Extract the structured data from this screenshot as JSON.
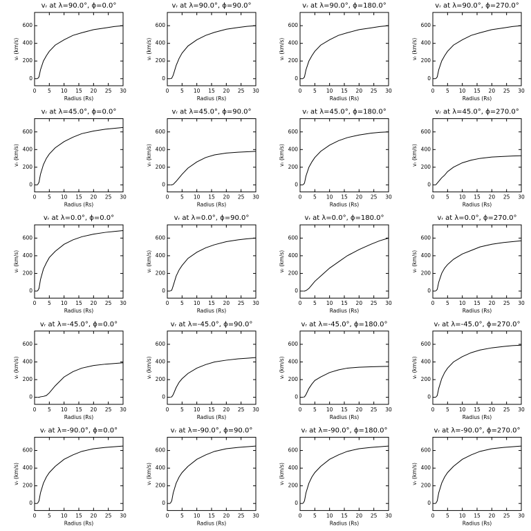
{
  "chart_data": [
    {
      "type": "line",
      "title": "vᵣ at λ=90.0°, ϕ=0.0°",
      "xlabel": "Radius (Rs)",
      "ylabel": "vᵣ (km/s)",
      "x": [
        1,
        1.5,
        2,
        3,
        4,
        5,
        7,
        10,
        13,
        16,
        20,
        24,
        27,
        30
      ],
      "values": [
        0,
        20,
        100,
        200,
        260,
        310,
        380,
        440,
        490,
        520,
        555,
        575,
        590,
        600
      ],
      "xlim": [
        0,
        30
      ],
      "ylim": [
        -80,
        750
      ],
      "xticks": [
        0,
        5,
        10,
        15,
        20,
        25,
        30
      ],
      "yticks": [
        0,
        200,
        400,
        600
      ]
    },
    {
      "type": "line",
      "title": "vᵣ at λ=90.0°, ϕ=90.0°",
      "xlabel": "Radius (Rs)",
      "ylabel": "vᵣ (km/s)",
      "x": [
        1,
        1.5,
        2,
        3,
        4,
        5,
        7,
        10,
        13,
        16,
        20,
        24,
        27,
        30
      ],
      "values": [
        0,
        5,
        40,
        150,
        230,
        290,
        370,
        440,
        490,
        525,
        560,
        580,
        592,
        600
      ],
      "xlim": [
        0,
        30
      ],
      "ylim": [
        -80,
        750
      ],
      "xticks": [
        0,
        5,
        10,
        15,
        20,
        25,
        30
      ],
      "yticks": [
        0,
        200,
        400,
        600
      ]
    },
    {
      "type": "line",
      "title": "vᵣ at λ=90.0°, ϕ=180.0°",
      "xlabel": "Radius (Rs)",
      "ylabel": "vᵣ (km/s)",
      "x": [
        1,
        1.5,
        2,
        3,
        4,
        5,
        7,
        10,
        13,
        16,
        20,
        24,
        27,
        30
      ],
      "values": [
        0,
        20,
        100,
        200,
        260,
        310,
        380,
        440,
        490,
        520,
        555,
        575,
        590,
        600
      ],
      "xlim": [
        0,
        30
      ],
      "ylim": [
        -80,
        750
      ],
      "xticks": [
        0,
        5,
        10,
        15,
        20,
        25,
        30
      ],
      "yticks": [
        0,
        200,
        400,
        600
      ]
    },
    {
      "type": "line",
      "title": "vᵣ at λ=90.0°, ϕ=270.0°",
      "xlabel": "Radius (Rs)",
      "ylabel": "vᵣ (km/s)",
      "x": [
        1,
        1.5,
        2,
        3,
        4,
        5,
        7,
        10,
        13,
        16,
        20,
        24,
        27,
        30
      ],
      "values": [
        0,
        20,
        100,
        200,
        260,
        310,
        380,
        440,
        490,
        520,
        555,
        575,
        590,
        600
      ],
      "xlim": [
        0,
        30
      ],
      "ylim": [
        -80,
        750
      ],
      "xticks": [
        0,
        5,
        10,
        15,
        20,
        25,
        30
      ],
      "yticks": [
        0,
        200,
        400,
        600
      ]
    },
    {
      "type": "line",
      "title": "vᵣ at λ=45.0°, ϕ=0.0°",
      "xlabel": "Radius (Rs)",
      "ylabel": "vᵣ (km/s)",
      "x": [
        1,
        1.5,
        2,
        3,
        4,
        5,
        7,
        10,
        13,
        16,
        20,
        24,
        27,
        30
      ],
      "values": [
        0,
        30,
        120,
        230,
        300,
        350,
        420,
        490,
        540,
        580,
        610,
        630,
        640,
        650
      ],
      "xlim": [
        0,
        30
      ],
      "ylim": [
        -80,
        750
      ],
      "xticks": [
        0,
        5,
        10,
        15,
        20,
        25,
        30
      ],
      "yticks": [
        0,
        200,
        400,
        600
      ]
    },
    {
      "type": "line",
      "title": "vᵣ at λ=45.0°, ϕ=90.0°",
      "xlabel": "Radius (Rs)",
      "ylabel": "vᵣ (km/s)",
      "x": [
        1,
        1.5,
        2,
        3,
        4,
        5,
        7,
        10,
        13,
        16,
        20,
        24,
        27,
        30
      ],
      "values": [
        0,
        0,
        5,
        40,
        80,
        120,
        190,
        260,
        310,
        340,
        360,
        370,
        375,
        380
      ],
      "xlim": [
        0,
        30
      ],
      "ylim": [
        -80,
        750
      ],
      "xticks": [
        0,
        5,
        10,
        15,
        20,
        25,
        30
      ],
      "yticks": [
        0,
        200,
        400,
        600
      ]
    },
    {
      "type": "line",
      "title": "vᵣ at λ=45.0°, ϕ=180.0°",
      "xlabel": "Radius (Rs)",
      "ylabel": "vᵣ (km/s)",
      "x": [
        1,
        1.5,
        2,
        3,
        4,
        5,
        7,
        10,
        13,
        16,
        20,
        24,
        27,
        30
      ],
      "values": [
        0,
        20,
        100,
        200,
        260,
        310,
        380,
        450,
        500,
        535,
        565,
        585,
        595,
        600
      ],
      "xlim": [
        0,
        30
      ],
      "ylim": [
        -80,
        750
      ],
      "xticks": [
        0,
        5,
        10,
        15,
        20,
        25,
        30
      ],
      "yticks": [
        0,
        200,
        400,
        600
      ]
    },
    {
      "type": "line",
      "title": "vᵣ at λ=45.0°, ϕ=270.0°",
      "xlabel": "Radius (Rs)",
      "ylabel": "vᵣ (km/s)",
      "x": [
        1,
        1.5,
        2,
        3,
        4,
        5,
        7,
        10,
        13,
        16,
        20,
        24,
        27,
        30
      ],
      "values": [
        0,
        20,
        40,
        80,
        110,
        150,
        200,
        250,
        280,
        300,
        315,
        322,
        327,
        330
      ],
      "xlim": [
        0,
        30
      ],
      "ylim": [
        -80,
        750
      ],
      "xticks": [
        0,
        5,
        10,
        15,
        20,
        25,
        30
      ],
      "yticks": [
        0,
        200,
        400,
        600
      ]
    },
    {
      "type": "line",
      "title": "vᵣ at λ=0.0°, ϕ=0.0°",
      "xlabel": "Radius (Rs)",
      "ylabel": "vᵣ (km/s)",
      "x": [
        1,
        1.5,
        2,
        3,
        4,
        5,
        7,
        10,
        13,
        16,
        20,
        24,
        27,
        30
      ],
      "values": [
        0,
        30,
        130,
        250,
        320,
        380,
        450,
        530,
        580,
        615,
        645,
        665,
        675,
        685
      ],
      "xlim": [
        0,
        30
      ],
      "ylim": [
        -80,
        750
      ],
      "xticks": [
        0,
        5,
        10,
        15,
        20,
        25,
        30
      ],
      "yticks": [
        0,
        200,
        400,
        600
      ]
    },
    {
      "type": "line",
      "title": "vᵣ at λ=0.0°, ϕ=90.0°",
      "xlabel": "Radius (Rs)",
      "ylabel": "vᵣ (km/s)",
      "x": [
        1,
        1.5,
        2,
        3,
        4,
        5,
        7,
        10,
        13,
        16,
        20,
        24,
        27,
        30
      ],
      "values": [
        0,
        10,
        60,
        170,
        240,
        290,
        370,
        440,
        490,
        525,
        560,
        580,
        592,
        600
      ],
      "xlim": [
        0,
        30
      ],
      "ylim": [
        -80,
        750
      ],
      "xticks": [
        0,
        5,
        10,
        15,
        20,
        25,
        30
      ],
      "yticks": [
        0,
        200,
        400,
        600
      ]
    },
    {
      "type": "line",
      "title": "vᵣ at λ=0.0°, ϕ=180.0°",
      "xlabel": "Radius (Rs)",
      "ylabel": "vᵣ (km/s)",
      "x": [
        1,
        1.5,
        2,
        3,
        4,
        5,
        7,
        10,
        13,
        16,
        20,
        24,
        27,
        30
      ],
      "values": [
        0,
        0,
        5,
        30,
        70,
        110,
        170,
        260,
        330,
        400,
        470,
        530,
        570,
        600
      ],
      "xlim": [
        0,
        30
      ],
      "ylim": [
        -80,
        750
      ],
      "xticks": [
        0,
        5,
        10,
        15,
        20,
        25,
        30
      ],
      "yticks": [
        0,
        200,
        400,
        600
      ]
    },
    {
      "type": "line",
      "title": "vᵣ at λ=0.0°, ϕ=270.0°",
      "xlabel": "Radius (Rs)",
      "ylabel": "vᵣ (km/s)",
      "x": [
        1,
        1.5,
        2,
        3,
        4,
        5,
        7,
        10,
        13,
        16,
        20,
        24,
        27,
        30
      ],
      "values": [
        0,
        20,
        100,
        200,
        260,
        300,
        360,
        420,
        460,
        500,
        530,
        550,
        560,
        570
      ],
      "xlim": [
        0,
        30
      ],
      "ylim": [
        -80,
        750
      ],
      "xticks": [
        0,
        5,
        10,
        15,
        20,
        25,
        30
      ],
      "yticks": [
        0,
        200,
        400,
        600
      ]
    },
    {
      "type": "line",
      "title": "vᵣ at λ=-45.0°, ϕ=0.0°",
      "xlabel": "Radius (Rs)",
      "ylabel": "vᵣ (km/s)",
      "x": [
        1,
        1.5,
        2,
        3,
        4,
        5,
        7,
        10,
        13,
        16,
        20,
        24,
        27,
        30
      ],
      "values": [
        0,
        0,
        5,
        10,
        20,
        50,
        130,
        230,
        290,
        330,
        360,
        375,
        382,
        390
      ],
      "xlim": [
        0,
        30
      ],
      "ylim": [
        -80,
        750
      ],
      "xticks": [
        0,
        5,
        10,
        15,
        20,
        25,
        30
      ],
      "yticks": [
        0,
        200,
        400,
        600
      ]
    },
    {
      "type": "line",
      "title": "vᵣ at λ=-45.0°, ϕ=90.0°",
      "xlabel": "Radius (Rs)",
      "ylabel": "vᵣ (km/s)",
      "x": [
        1,
        1.5,
        2,
        3,
        4,
        5,
        7,
        10,
        13,
        16,
        20,
        24,
        27,
        30
      ],
      "values": [
        0,
        5,
        30,
        110,
        170,
        210,
        270,
        330,
        370,
        400,
        420,
        435,
        442,
        450
      ],
      "xlim": [
        0,
        30
      ],
      "ylim": [
        -80,
        750
      ],
      "xticks": [
        0,
        5,
        10,
        15,
        20,
        25,
        30
      ],
      "yticks": [
        0,
        200,
        400,
        600
      ]
    },
    {
      "type": "line",
      "title": "vᵣ at λ=-45.0°, ϕ=180.0°",
      "xlabel": "Radius (Rs)",
      "ylabel": "vᵣ (km/s)",
      "x": [
        1,
        1.5,
        2,
        3,
        4,
        5,
        7,
        10,
        13,
        16,
        20,
        24,
        27,
        30
      ],
      "values": [
        0,
        5,
        30,
        100,
        150,
        190,
        230,
        280,
        310,
        330,
        340,
        345,
        348,
        350
      ],
      "xlim": [
        0,
        30
      ],
      "ylim": [
        -80,
        750
      ],
      "xticks": [
        0,
        5,
        10,
        15,
        20,
        25,
        30
      ],
      "yticks": [
        0,
        200,
        400,
        600
      ]
    },
    {
      "type": "line",
      "title": "vᵣ at λ=-45.0°, ϕ=270.0°",
      "xlabel": "Radius (Rs)",
      "ylabel": "vᵣ (km/s)",
      "x": [
        1,
        1.5,
        2,
        3,
        4,
        5,
        7,
        10,
        13,
        16,
        20,
        24,
        27,
        30
      ],
      "values": [
        0,
        20,
        100,
        210,
        280,
        330,
        400,
        460,
        505,
        535,
        560,
        575,
        585,
        590
      ],
      "xlim": [
        0,
        30
      ],
      "ylim": [
        -80,
        750
      ],
      "xticks": [
        0,
        5,
        10,
        15,
        20,
        25,
        30
      ],
      "yticks": [
        0,
        200,
        400,
        600
      ]
    },
    {
      "type": "line",
      "title": "vᵣ at λ=-90.0°, ϕ=0.0°",
      "xlabel": "Radius (Rs)",
      "ylabel": "vᵣ (km/s)",
      "x": [
        1,
        1.5,
        2,
        3,
        4,
        5,
        7,
        10,
        13,
        16,
        20,
        24,
        27,
        30
      ],
      "values": [
        0,
        30,
        120,
        230,
        300,
        350,
        420,
        500,
        550,
        590,
        620,
        635,
        643,
        650
      ],
      "xlim": [
        0,
        30
      ],
      "ylim": [
        -80,
        750
      ],
      "xticks": [
        0,
        5,
        10,
        15,
        20,
        25,
        30
      ],
      "yticks": [
        0,
        200,
        400,
        600
      ]
    },
    {
      "type": "line",
      "title": "vᵣ at λ=-90.0°, ϕ=90.0°",
      "xlabel": "Radius (Rs)",
      "ylabel": "vᵣ (km/s)",
      "x": [
        1,
        1.5,
        2,
        3,
        4,
        5,
        7,
        10,
        13,
        16,
        20,
        24,
        27,
        30
      ],
      "values": [
        0,
        30,
        120,
        230,
        300,
        350,
        420,
        500,
        550,
        590,
        620,
        635,
        643,
        650
      ],
      "xlim": [
        0,
        30
      ],
      "ylim": [
        -80,
        750
      ],
      "xticks": [
        0,
        5,
        10,
        15,
        20,
        25,
        30
      ],
      "yticks": [
        0,
        200,
        400,
        600
      ]
    },
    {
      "type": "line",
      "title": "vᵣ at λ=-90.0°, ϕ=180.0°",
      "xlabel": "Radius (Rs)",
      "ylabel": "vᵣ (km/s)",
      "x": [
        1,
        1.5,
        2,
        3,
        4,
        5,
        7,
        10,
        13,
        16,
        20,
        24,
        27,
        30
      ],
      "values": [
        0,
        30,
        120,
        230,
        300,
        350,
        420,
        500,
        550,
        590,
        620,
        635,
        643,
        650
      ],
      "xlim": [
        0,
        30
      ],
      "ylim": [
        -80,
        750
      ],
      "xticks": [
        0,
        5,
        10,
        15,
        20,
        25,
        30
      ],
      "yticks": [
        0,
        200,
        400,
        600
      ]
    },
    {
      "type": "line",
      "title": "vᵣ at λ=-90.0°, ϕ=270.0°",
      "xlabel": "Radius (Rs)",
      "ylabel": "vᵣ (km/s)",
      "x": [
        1,
        1.5,
        2,
        3,
        4,
        5,
        7,
        10,
        13,
        16,
        20,
        24,
        27,
        30
      ],
      "values": [
        0,
        30,
        120,
        230,
        300,
        350,
        420,
        500,
        550,
        590,
        620,
        635,
        643,
        650
      ],
      "xlim": [
        0,
        30
      ],
      "ylim": [
        -80,
        750
      ],
      "xticks": [
        0,
        5,
        10,
        15,
        20,
        25,
        30
      ],
      "yticks": [
        0,
        200,
        400,
        600
      ]
    }
  ]
}
